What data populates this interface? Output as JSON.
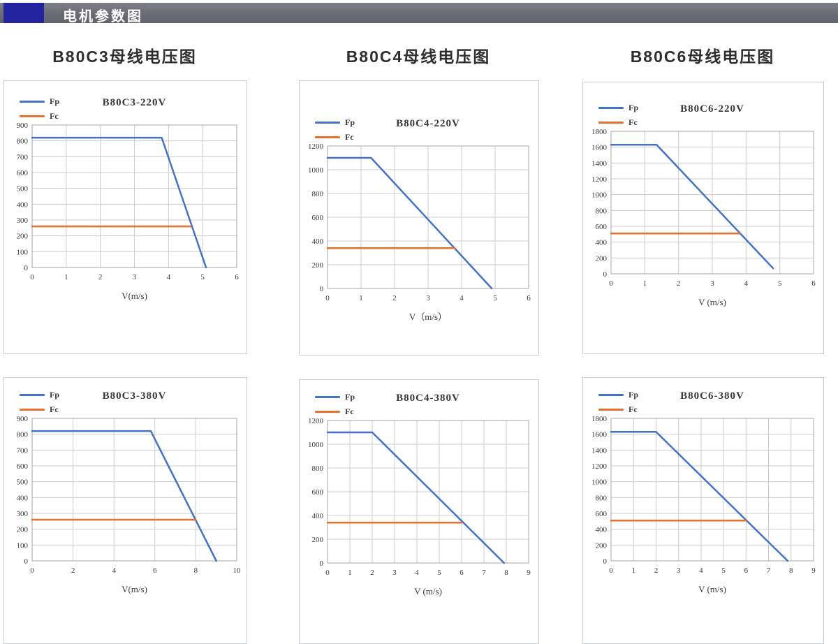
{
  "header": {
    "title": "电机参数图",
    "accent_color": "#2424a0",
    "bar_color": "#6b6b74"
  },
  "section_titles": [
    "B80C3母线电压图",
    "B80C4母线电压图",
    "B80C6母线电压图"
  ],
  "colors": {
    "fp": "#4472c4",
    "fc": "#e8702e",
    "grid": "#cccccc",
    "axis": "#a5a5a5",
    "text": "#3a3a3a"
  },
  "chart_data": [
    {
      "type": "line",
      "subtitle": "B80C3-220V",
      "xlabel": "V(m/s)",
      "xlim": [
        0,
        6
      ],
      "xstep": 1,
      "ylim": [
        0,
        900
      ],
      "ystep": 100,
      "grid": true,
      "legend_position": "top-left",
      "pad_top": 5,
      "series": [
        {
          "name": "Fp",
          "color": "#4472c4",
          "points": [
            [
              0,
              820
            ],
            [
              3.8,
              820
            ],
            [
              5.1,
              0
            ]
          ]
        },
        {
          "name": "Fc",
          "color": "#e8702e",
          "points": [
            [
              0,
              260
            ],
            [
              4.65,
              260
            ]
          ]
        }
      ]
    },
    {
      "type": "line",
      "subtitle": "B80C4-220V",
      "xlabel": "V（m/s）",
      "xlim": [
        0,
        6
      ],
      "xstep": 1,
      "ylim": [
        0,
        1200
      ],
      "ystep": 200,
      "grid": true,
      "legend_position": "top-left",
      "pad_top": 35,
      "series": [
        {
          "name": "Fp",
          "color": "#4472c4",
          "points": [
            [
              0,
              1100
            ],
            [
              1.3,
              1100
            ],
            [
              4.9,
              0
            ]
          ]
        },
        {
          "name": "Fc",
          "color": "#e8702e",
          "points": [
            [
              0,
              340
            ],
            [
              3.8,
              340
            ]
          ]
        }
      ]
    },
    {
      "type": "line",
      "subtitle": "B80C6-220V",
      "xlabel": "V (m/s)",
      "xlim": [
        0,
        6
      ],
      "xstep": 1,
      "ylim": [
        0,
        1800
      ],
      "ystep": 200,
      "grid": true,
      "legend_position": "top-left",
      "pad_top": 12,
      "series": [
        {
          "name": "Fp",
          "color": "#4472c4",
          "points": [
            [
              0,
              1630
            ],
            [
              1.35,
              1630
            ],
            [
              4.8,
              70
            ]
          ]
        },
        {
          "name": "Fc",
          "color": "#e8702e",
          "points": [
            [
              0,
              510
            ],
            [
              3.8,
              510
            ]
          ]
        }
      ]
    },
    {
      "type": "line",
      "subtitle": "B80C3-380V",
      "xlabel": "V(m/s)",
      "xlim": [
        0,
        10
      ],
      "xstep": 2,
      "ylim": [
        0,
        900
      ],
      "ystep": 100,
      "grid": true,
      "legend_position": "top-left",
      "pad_top": 0,
      "series": [
        {
          "name": "Fp",
          "color": "#4472c4",
          "points": [
            [
              0,
              820
            ],
            [
              5.8,
              820
            ],
            [
              9,
              0
            ]
          ]
        },
        {
          "name": "Fc",
          "color": "#e8702e",
          "points": [
            [
              0,
              260
            ],
            [
              8,
              260
            ]
          ]
        }
      ]
    },
    {
      "type": "line",
      "subtitle": "B80C4-380V",
      "xlabel": "V (m/s)",
      "xlim": [
        0,
        9
      ],
      "xstep": 1,
      "ylim": [
        0,
        1200
      ],
      "ystep": 200,
      "grid": true,
      "legend_position": "top-left",
      "pad_top": 0,
      "series": [
        {
          "name": "Fp",
          "color": "#4472c4",
          "points": [
            [
              0,
              1100
            ],
            [
              2,
              1100
            ],
            [
              7.9,
              0
            ]
          ]
        },
        {
          "name": "Fc",
          "color": "#e8702e",
          "points": [
            [
              0,
              340
            ],
            [
              6,
              340
            ]
          ]
        }
      ]
    },
    {
      "type": "line",
      "subtitle": "B80C6-380V",
      "xlabel": "V (m/s)",
      "xlim": [
        0,
        9
      ],
      "xstep": 1,
      "ylim": [
        0,
        1800
      ],
      "ystep": 200,
      "grid": true,
      "legend_position": "top-left",
      "pad_top": 0,
      "series": [
        {
          "name": "Fp",
          "color": "#4472c4",
          "points": [
            [
              0,
              1630
            ],
            [
              2,
              1630
            ],
            [
              7.85,
              0
            ]
          ]
        },
        {
          "name": "Fc",
          "color": "#e8702e",
          "points": [
            [
              0,
              510
            ],
            [
              6,
              510
            ]
          ]
        }
      ]
    }
  ]
}
